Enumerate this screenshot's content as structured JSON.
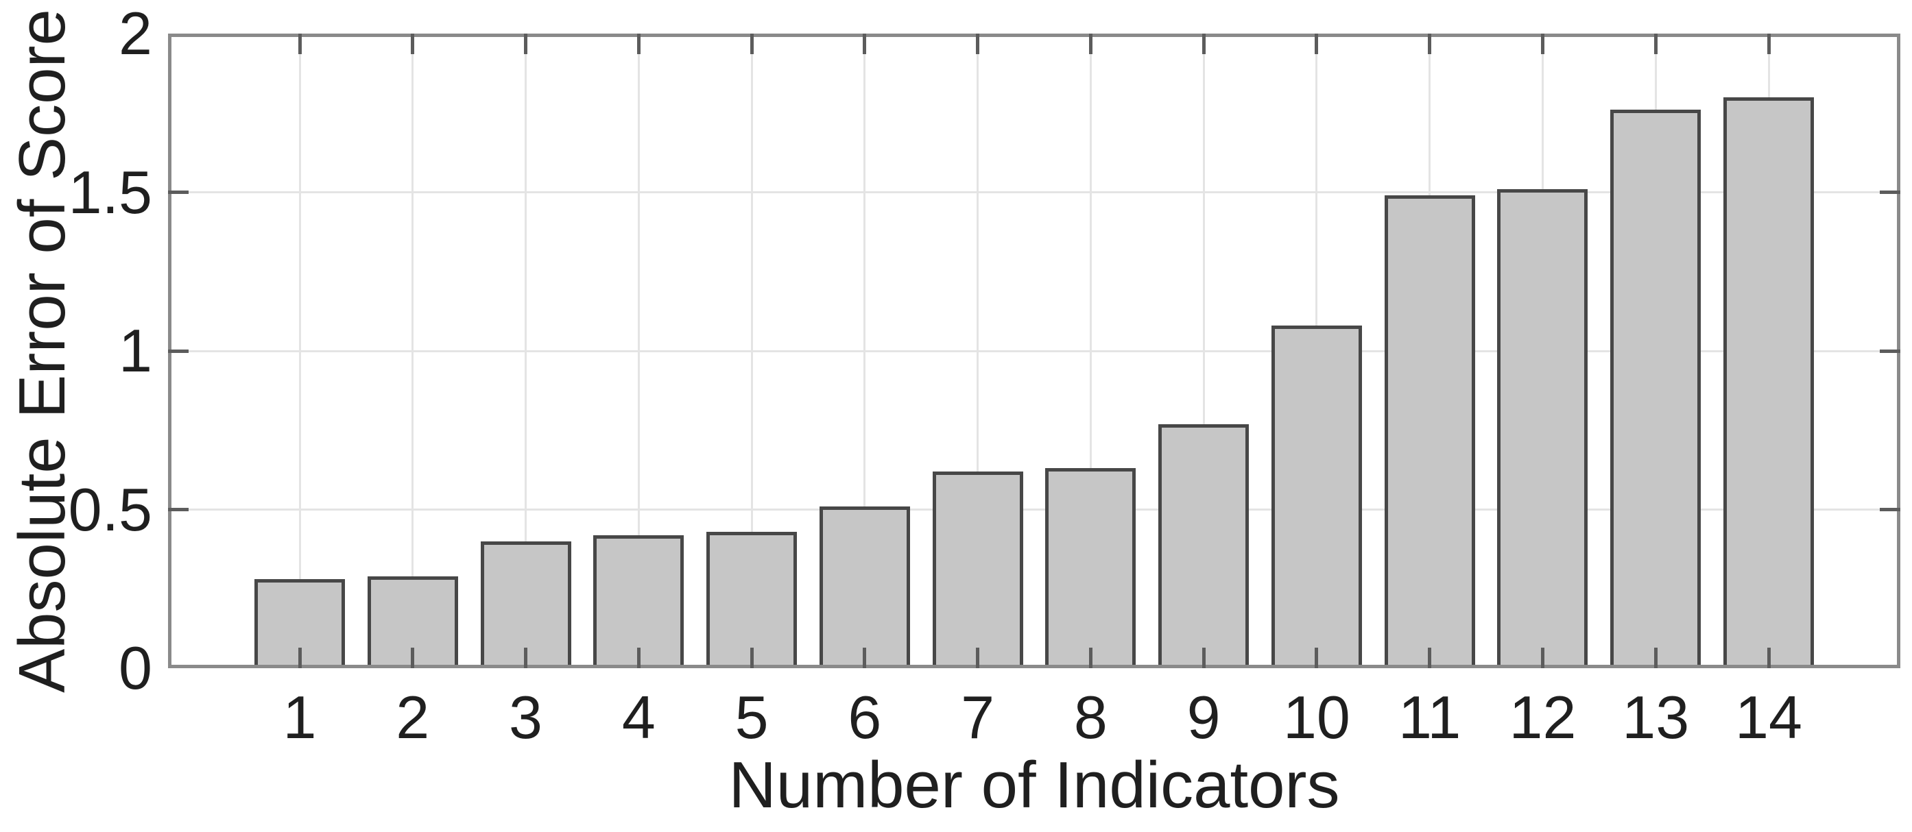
{
  "figure": {
    "background": "#ffffff"
  },
  "chart_data": {
    "type": "bar",
    "title": "",
    "xlabel": "Number of Indicators",
    "ylabel": "Absolute Error of Score",
    "categories": [
      "1",
      "2",
      "3",
      "4",
      "5",
      "6",
      "7",
      "8",
      "9",
      "10",
      "11",
      "12",
      "13",
      "14"
    ],
    "values": [
      0.28,
      0.29,
      0.4,
      0.42,
      0.43,
      0.51,
      0.62,
      0.63,
      0.77,
      1.08,
      1.49,
      1.51,
      1.76,
      1.8
    ],
    "ylim": [
      0,
      2
    ],
    "yticks": [
      0,
      0.5,
      1,
      1.5,
      2
    ],
    "ytick_labels": [
      "0",
      "0.5",
      "1",
      "1.5",
      "2"
    ],
    "grid": true,
    "legend": "none",
    "bar_fill_color": "#c6c6c6",
    "bar_edge_color": "#474747",
    "axis_color": "#8a8a8a",
    "grid_color": "#e4e4e4",
    "tick_color": "#5c5c5c",
    "text_color": "#1f1f1f"
  }
}
